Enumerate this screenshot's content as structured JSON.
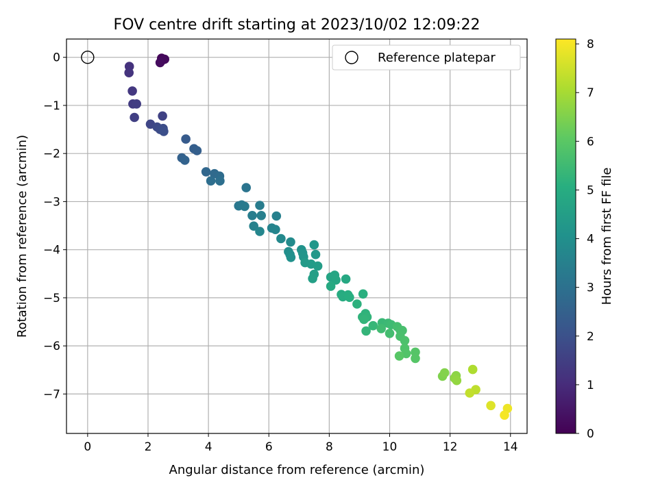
{
  "chart_data": {
    "type": "scatter",
    "title": "FOV centre drift starting at 2023/10/02 12:09:22",
    "xlabel": "Angular distance from reference (arcmin)",
    "ylabel": "Rotation from reference (arcmin)",
    "xlim": [
      -0.7,
      14.55
    ],
    "ylim": [
      -7.82,
      0.38
    ],
    "xticks": [
      0,
      2,
      4,
      6,
      8,
      10,
      12,
      14
    ],
    "yticks": [
      0,
      -1,
      -2,
      -3,
      -4,
      -5,
      -6,
      -7
    ],
    "grid": true,
    "legend": {
      "position": "top-right",
      "entries": [
        "Reference platepar"
      ]
    },
    "reference_point": {
      "x": 0,
      "y": 0
    },
    "colorbar": {
      "label": "Hours from first FF file",
      "range": [
        0,
        8.1
      ],
      "ticks": [
        0,
        1,
        2,
        3,
        4,
        5,
        6,
        7,
        8
      ],
      "colormap": "viridis"
    },
    "points": [
      {
        "x": 2.45,
        "y": -0.02,
        "h": 0.1
      },
      {
        "x": 2.55,
        "y": -0.04,
        "h": 0.15
      },
      {
        "x": 2.5,
        "y": -0.05,
        "h": 0.2
      },
      {
        "x": 2.4,
        "y": -0.11,
        "h": 0.25
      },
      {
        "x": 1.38,
        "y": -0.19,
        "h": 1.15
      },
      {
        "x": 1.37,
        "y": -0.32,
        "h": 1.2
      },
      {
        "x": 1.48,
        "y": -0.7,
        "h": 1.3
      },
      {
        "x": 1.5,
        "y": -0.97,
        "h": 1.4
      },
      {
        "x": 1.62,
        "y": -0.97,
        "h": 1.45
      },
      {
        "x": 1.55,
        "y": -1.25,
        "h": 1.5
      },
      {
        "x": 2.48,
        "y": -1.22,
        "h": 1.6
      },
      {
        "x": 2.08,
        "y": -1.39,
        "h": 1.7
      },
      {
        "x": 2.3,
        "y": -1.45,
        "h": 1.8
      },
      {
        "x": 2.4,
        "y": -1.5,
        "h": 1.85
      },
      {
        "x": 2.5,
        "y": -1.48,
        "h": 1.9
      },
      {
        "x": 2.52,
        "y": -1.54,
        "h": 1.95
      },
      {
        "x": 3.25,
        "y": -1.7,
        "h": 2.3
      },
      {
        "x": 3.52,
        "y": -1.9,
        "h": 2.4
      },
      {
        "x": 3.62,
        "y": -1.94,
        "h": 2.45
      },
      {
        "x": 3.12,
        "y": -2.09,
        "h": 2.5
      },
      {
        "x": 3.22,
        "y": -2.14,
        "h": 2.55
      },
      {
        "x": 3.92,
        "y": -2.38,
        "h": 2.7
      },
      {
        "x": 4.2,
        "y": -2.42,
        "h": 2.8
      },
      {
        "x": 4.37,
        "y": -2.47,
        "h": 2.85
      },
      {
        "x": 4.08,
        "y": -2.57,
        "h": 2.9
      },
      {
        "x": 4.38,
        "y": -2.57,
        "h": 2.95
      },
      {
        "x": 5.25,
        "y": -2.71,
        "h": 3.1
      },
      {
        "x": 5.0,
        "y": -3.09,
        "h": 3.2
      },
      {
        "x": 5.1,
        "y": -3.07,
        "h": 3.25
      },
      {
        "x": 5.2,
        "y": -3.1,
        "h": 3.3
      },
      {
        "x": 5.7,
        "y": -3.08,
        "h": 3.35
      },
      {
        "x": 5.45,
        "y": -3.29,
        "h": 3.4
      },
      {
        "x": 5.75,
        "y": -3.29,
        "h": 3.45
      },
      {
        "x": 6.25,
        "y": -3.3,
        "h": 3.5
      },
      {
        "x": 5.5,
        "y": -3.51,
        "h": 3.55
      },
      {
        "x": 6.1,
        "y": -3.55,
        "h": 3.6
      },
      {
        "x": 6.22,
        "y": -3.58,
        "h": 3.65
      },
      {
        "x": 5.7,
        "y": -3.62,
        "h": 3.7
      },
      {
        "x": 6.4,
        "y": -3.77,
        "h": 3.8
      },
      {
        "x": 6.72,
        "y": -3.84,
        "h": 3.85
      },
      {
        "x": 6.65,
        "y": -4.04,
        "h": 3.95
      },
      {
        "x": 6.7,
        "y": -4.1,
        "h": 4.0
      },
      {
        "x": 6.73,
        "y": -4.16,
        "h": 4.05
      },
      {
        "x": 7.08,
        "y": -4.0,
        "h": 4.1
      },
      {
        "x": 7.12,
        "y": -4.07,
        "h": 4.15
      },
      {
        "x": 7.15,
        "y": -4.15,
        "h": 4.2
      },
      {
        "x": 7.5,
        "y": -3.9,
        "h": 4.25
      },
      {
        "x": 7.55,
        "y": -4.1,
        "h": 4.3
      },
      {
        "x": 7.2,
        "y": -4.27,
        "h": 4.35
      },
      {
        "x": 7.4,
        "y": -4.3,
        "h": 4.4
      },
      {
        "x": 7.62,
        "y": -4.34,
        "h": 4.45
      },
      {
        "x": 7.5,
        "y": -4.51,
        "h": 4.5
      },
      {
        "x": 7.45,
        "y": -4.6,
        "h": 4.55
      },
      {
        "x": 8.05,
        "y": -4.57,
        "h": 4.7
      },
      {
        "x": 8.18,
        "y": -4.53,
        "h": 4.75
      },
      {
        "x": 8.22,
        "y": -4.63,
        "h": 4.8
      },
      {
        "x": 8.55,
        "y": -4.61,
        "h": 4.85
      },
      {
        "x": 8.05,
        "y": -4.76,
        "h": 4.9
      },
      {
        "x": 8.4,
        "y": -4.93,
        "h": 4.95
      },
      {
        "x": 8.45,
        "y": -4.98,
        "h": 5.0
      },
      {
        "x": 8.62,
        "y": -4.94,
        "h": 5.02
      },
      {
        "x": 8.67,
        "y": -4.99,
        "h": 5.05
      },
      {
        "x": 9.12,
        "y": -4.92,
        "h": 5.1
      },
      {
        "x": 8.92,
        "y": -5.13,
        "h": 5.15
      },
      {
        "x": 9.2,
        "y": -5.33,
        "h": 5.2
      },
      {
        "x": 9.1,
        "y": -5.4,
        "h": 5.22
      },
      {
        "x": 9.25,
        "y": -5.4,
        "h": 5.25
      },
      {
        "x": 9.15,
        "y": -5.45,
        "h": 5.28
      },
      {
        "x": 9.45,
        "y": -5.58,
        "h": 5.35
      },
      {
        "x": 9.75,
        "y": -5.52,
        "h": 5.4
      },
      {
        "x": 9.95,
        "y": -5.53,
        "h": 5.45
      },
      {
        "x": 10.05,
        "y": -5.56,
        "h": 5.5
      },
      {
        "x": 9.72,
        "y": -5.64,
        "h": 5.55
      },
      {
        "x": 9.22,
        "y": -5.69,
        "h": 5.3
      },
      {
        "x": 10.0,
        "y": -5.74,
        "h": 5.6
      },
      {
        "x": 10.25,
        "y": -5.6,
        "h": 5.62
      },
      {
        "x": 10.35,
        "y": -5.67,
        "h": 5.65
      },
      {
        "x": 10.42,
        "y": -5.68,
        "h": 5.68
      },
      {
        "x": 10.35,
        "y": -5.8,
        "h": 5.7
      },
      {
        "x": 10.5,
        "y": -5.89,
        "h": 5.75
      },
      {
        "x": 10.5,
        "y": -6.05,
        "h": 5.8
      },
      {
        "x": 10.55,
        "y": -6.16,
        "h": 5.85
      },
      {
        "x": 10.85,
        "y": -6.13,
        "h": 5.9
      },
      {
        "x": 10.85,
        "y": -6.26,
        "h": 5.92
      },
      {
        "x": 10.32,
        "y": -6.21,
        "h": 5.95
      },
      {
        "x": 11.75,
        "y": -6.63,
        "h": 6.5
      },
      {
        "x": 11.82,
        "y": -6.56,
        "h": 6.55
      },
      {
        "x": 12.2,
        "y": -6.62,
        "h": 6.65
      },
      {
        "x": 12.15,
        "y": -6.67,
        "h": 6.7
      },
      {
        "x": 12.22,
        "y": -6.72,
        "h": 6.75
      },
      {
        "x": 12.75,
        "y": -6.49,
        "h": 7.1
      },
      {
        "x": 12.85,
        "y": -6.91,
        "h": 7.3
      },
      {
        "x": 12.65,
        "y": -6.98,
        "h": 7.35
      },
      {
        "x": 13.35,
        "y": -7.24,
        "h": 7.7
      },
      {
        "x": 13.9,
        "y": -7.3,
        "h": 7.9
      },
      {
        "x": 13.8,
        "y": -7.44,
        "h": 8.0
      }
    ]
  }
}
